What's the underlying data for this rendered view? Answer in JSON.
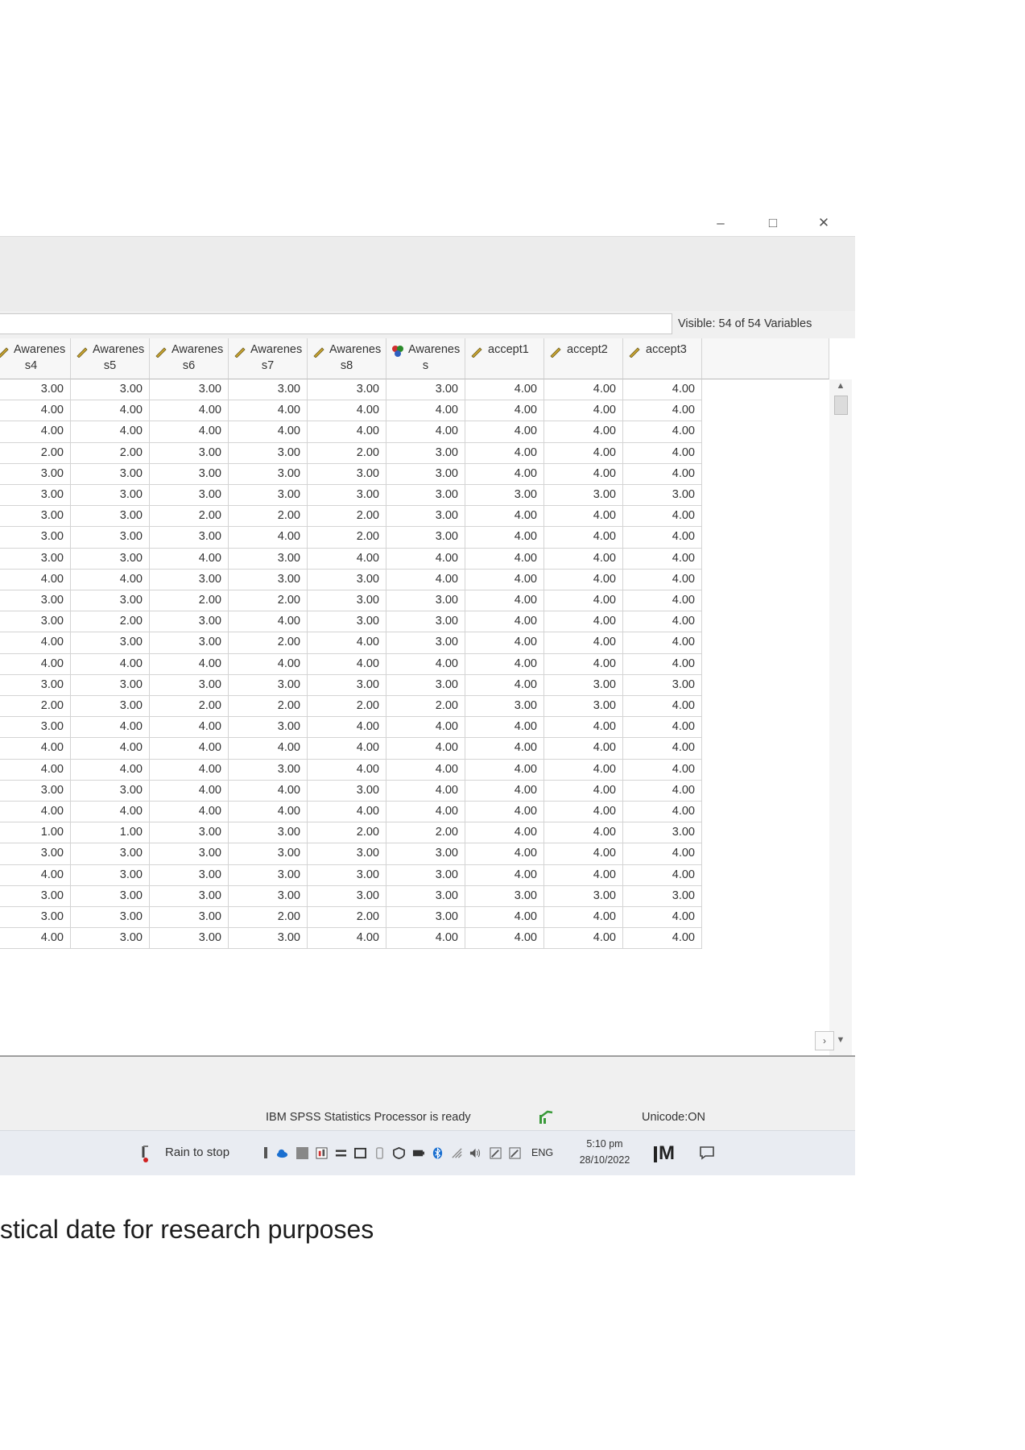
{
  "window": {
    "minimize_label": "–",
    "maximize_label": "□",
    "close_label": "✕"
  },
  "visible_variables": "Visible: 54 of 54 Variables",
  "columns": [
    {
      "line1": "Awarenes",
      "line2": "s4",
      "icon": "scale-measure-icon"
    },
    {
      "line1": "Awarenes",
      "line2": "s5",
      "icon": "scale-measure-icon"
    },
    {
      "line1": "Awarenes",
      "line2": "s6",
      "icon": "scale-measure-icon"
    },
    {
      "line1": "Awarenes",
      "line2": "s7",
      "icon": "scale-measure-icon"
    },
    {
      "line1": "Awarenes",
      "line2": "s8",
      "icon": "scale-measure-icon"
    },
    {
      "line1": "Awarenes",
      "line2": "s",
      "icon": "nominal-measure-icon"
    },
    {
      "line1": "accept1",
      "line2": "",
      "icon": "scale-measure-icon"
    },
    {
      "line1": "accept2",
      "line2": "",
      "icon": "scale-measure-icon"
    },
    {
      "line1": "accept3",
      "line2": "",
      "icon": "scale-measure-icon"
    }
  ],
  "rows": [
    [
      "3.00",
      "3.00",
      "3.00",
      "3.00",
      "3.00",
      "3.00",
      "4.00",
      "4.00",
      "4.00"
    ],
    [
      "4.00",
      "4.00",
      "4.00",
      "4.00",
      "4.00",
      "4.00",
      "4.00",
      "4.00",
      "4.00"
    ],
    [
      "4.00",
      "4.00",
      "4.00",
      "4.00",
      "4.00",
      "4.00",
      "4.00",
      "4.00",
      "4.00"
    ],
    [
      "2.00",
      "2.00",
      "3.00",
      "3.00",
      "2.00",
      "3.00",
      "4.00",
      "4.00",
      "4.00"
    ],
    [
      "3.00",
      "3.00",
      "3.00",
      "3.00",
      "3.00",
      "3.00",
      "4.00",
      "4.00",
      "4.00"
    ],
    [
      "3.00",
      "3.00",
      "3.00",
      "3.00",
      "3.00",
      "3.00",
      "3.00",
      "3.00",
      "3.00"
    ],
    [
      "3.00",
      "3.00",
      "2.00",
      "2.00",
      "2.00",
      "3.00",
      "4.00",
      "4.00",
      "4.00"
    ],
    [
      "3.00",
      "3.00",
      "3.00",
      "4.00",
      "2.00",
      "3.00",
      "4.00",
      "4.00",
      "4.00"
    ],
    [
      "3.00",
      "3.00",
      "4.00",
      "3.00",
      "4.00",
      "4.00",
      "4.00",
      "4.00",
      "4.00"
    ],
    [
      "4.00",
      "4.00",
      "3.00",
      "3.00",
      "3.00",
      "4.00",
      "4.00",
      "4.00",
      "4.00"
    ],
    [
      "3.00",
      "3.00",
      "2.00",
      "2.00",
      "3.00",
      "3.00",
      "4.00",
      "4.00",
      "4.00"
    ],
    [
      "3.00",
      "2.00",
      "3.00",
      "4.00",
      "3.00",
      "3.00",
      "4.00",
      "4.00",
      "4.00"
    ],
    [
      "4.00",
      "3.00",
      "3.00",
      "2.00",
      "4.00",
      "3.00",
      "4.00",
      "4.00",
      "4.00"
    ],
    [
      "4.00",
      "4.00",
      "4.00",
      "4.00",
      "4.00",
      "4.00",
      "4.00",
      "4.00",
      "4.00"
    ],
    [
      "3.00",
      "3.00",
      "3.00",
      "3.00",
      "3.00",
      "3.00",
      "4.00",
      "3.00",
      "3.00"
    ],
    [
      "2.00",
      "3.00",
      "2.00",
      "2.00",
      "2.00",
      "2.00",
      "3.00",
      "3.00",
      "4.00"
    ],
    [
      "3.00",
      "4.00",
      "4.00",
      "3.00",
      "4.00",
      "4.00",
      "4.00",
      "4.00",
      "4.00"
    ],
    [
      "4.00",
      "4.00",
      "4.00",
      "4.00",
      "4.00",
      "4.00",
      "4.00",
      "4.00",
      "4.00"
    ],
    [
      "4.00",
      "4.00",
      "4.00",
      "3.00",
      "4.00",
      "4.00",
      "4.00",
      "4.00",
      "4.00"
    ],
    [
      "3.00",
      "3.00",
      "4.00",
      "4.00",
      "3.00",
      "4.00",
      "4.00",
      "4.00",
      "4.00"
    ],
    [
      "4.00",
      "4.00",
      "4.00",
      "4.00",
      "4.00",
      "4.00",
      "4.00",
      "4.00",
      "4.00"
    ],
    [
      "1.00",
      "1.00",
      "3.00",
      "3.00",
      "2.00",
      "2.00",
      "4.00",
      "4.00",
      "3.00"
    ],
    [
      "3.00",
      "3.00",
      "3.00",
      "3.00",
      "3.00",
      "3.00",
      "4.00",
      "4.00",
      "4.00"
    ],
    [
      "4.00",
      "3.00",
      "3.00",
      "3.00",
      "3.00",
      "3.00",
      "4.00",
      "4.00",
      "4.00"
    ],
    [
      "3.00",
      "3.00",
      "3.00",
      "3.00",
      "3.00",
      "3.00",
      "3.00",
      "3.00",
      "3.00"
    ],
    [
      "3.00",
      "3.00",
      "3.00",
      "2.00",
      "2.00",
      "3.00",
      "4.00",
      "4.00",
      "4.00"
    ],
    [
      "4.00",
      "3.00",
      "3.00",
      "3.00",
      "4.00",
      "4.00",
      "4.00",
      "4.00",
      "4.00"
    ]
  ],
  "status": {
    "processor": "IBM SPSS Statistics Processor is ready",
    "unicode": "Unicode:ON"
  },
  "taskbar": {
    "weather": "Rain to stop",
    "language": "ENG",
    "time": "5:10 pm",
    "date": "28/10/2022",
    "app_badge": "M"
  },
  "caption": "stical date for research purposes"
}
